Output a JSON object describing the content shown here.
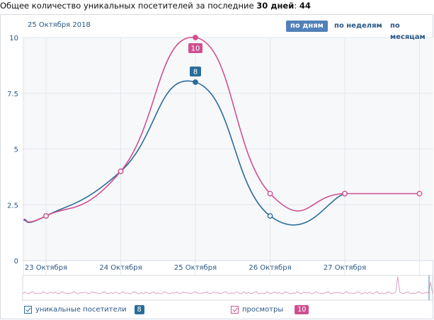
{
  "header": {
    "prefix": "Общее количество уникальных посетителей за последние",
    "days_bold": "30 дней",
    "colon": ":",
    "total": "44"
  },
  "date_label": "25 Октября 2018",
  "period_buttons": [
    {
      "label": "по дням",
      "active": true
    },
    {
      "label": "по неделям",
      "active": false
    },
    {
      "label": "по месяцам",
      "active": false
    }
  ],
  "legend": [
    {
      "label": "уникальные посетители",
      "value": "8",
      "color": "#2a6c99"
    },
    {
      "label": "просмотры",
      "value": "10",
      "color": "#d0508f"
    }
  ],
  "chart_data": {
    "type": "line",
    "x": [
      22.7,
      23.0,
      24.0,
      25.0,
      26.0,
      27.0,
      28.0
    ],
    "categories": [
      "23 Октября",
      "24 Октября",
      "25 Октября",
      "26 Октября",
      "27 Октября"
    ],
    "series": [
      {
        "name": "уникальные посетители",
        "color": "#2a6c99",
        "values": [
          1.8,
          2,
          4,
          8,
          2,
          3,
          null
        ]
      },
      {
        "name": "просмотры",
        "color": "#d0508f",
        "values": [
          1.85,
          2,
          4,
          10,
          3,
          3,
          3
        ]
      }
    ],
    "ylim": [
      0,
      10
    ],
    "yticks": [
      "0",
      "2.5",
      "5",
      "7.5",
      "10"
    ],
    "annotations": [
      {
        "series": 1,
        "label": "10",
        "x": 25.0
      },
      {
        "series": 0,
        "label": "8",
        "x": 25.0
      }
    ]
  }
}
